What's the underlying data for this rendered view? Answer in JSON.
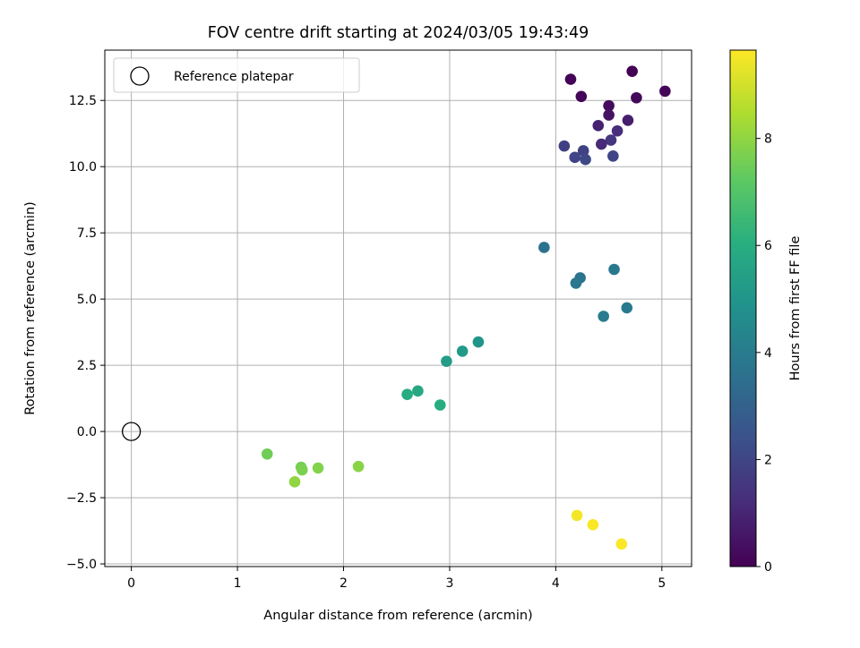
{
  "chart_data": {
    "type": "scatter",
    "title": "FOV centre drift starting at 2024/03/05 19:43:49",
    "xlabel": "Angular distance from reference (arcmin)",
    "ylabel": "Rotation from reference (arcmin)",
    "xlim": [
      -0.25,
      5.28
    ],
    "ylim": [
      -5.1,
      14.4
    ],
    "x_ticks": [
      0,
      1,
      2,
      3,
      4,
      5
    ],
    "x_tick_labels": [
      "0",
      "1",
      "2",
      "3",
      "4",
      "5"
    ],
    "y_ticks": [
      -5.0,
      -2.5,
      0.0,
      2.5,
      5.0,
      7.5,
      10.0,
      12.5
    ],
    "y_tick_labels": [
      "−5.0",
      "−2.5",
      "0.0",
      "2.5",
      "5.0",
      "7.5",
      "10.0",
      "12.5"
    ],
    "grid": true,
    "legend": {
      "placement": "upper-left",
      "entries": [
        {
          "label": "Reference platepar",
          "marker": "open-circle"
        }
      ]
    },
    "reference_point": {
      "x": 0,
      "y": 0
    },
    "colorbar": {
      "label": "Hours from first FF file",
      "colormap": "viridis",
      "range": [
        0,
        9.65
      ],
      "ticks": [
        0,
        2,
        4,
        6,
        8
      ],
      "tick_labels": [
        "0",
        "2",
        "4",
        "6",
        "8"
      ]
    },
    "points": [
      {
        "x": 4.72,
        "y": 13.6,
        "c": 0.0
      },
      {
        "x": 4.14,
        "y": 13.3,
        "c": 0.05
      },
      {
        "x": 5.03,
        "y": 12.85,
        "c": 0.1
      },
      {
        "x": 4.24,
        "y": 12.65,
        "c": 0.15
      },
      {
        "x": 4.76,
        "y": 12.6,
        "c": 0.2
      },
      {
        "x": 4.5,
        "y": 12.3,
        "c": 0.3
      },
      {
        "x": 4.5,
        "y": 11.95,
        "c": 0.5
      },
      {
        "x": 4.68,
        "y": 11.75,
        "c": 0.8
      },
      {
        "x": 4.4,
        "y": 11.55,
        "c": 0.9
      },
      {
        "x": 4.58,
        "y": 11.35,
        "c": 1.2
      },
      {
        "x": 4.52,
        "y": 11.0,
        "c": 1.5
      },
      {
        "x": 4.43,
        "y": 10.85,
        "c": 1.1
      },
      {
        "x": 4.08,
        "y": 10.78,
        "c": 1.8
      },
      {
        "x": 4.26,
        "y": 10.6,
        "c": 1.9
      },
      {
        "x": 4.18,
        "y": 10.35,
        "c": 2.0
      },
      {
        "x": 4.54,
        "y": 10.4,
        "c": 2.0
      },
      {
        "x": 4.28,
        "y": 10.27,
        "c": 2.1
      },
      {
        "x": 3.89,
        "y": 6.95,
        "c": 3.6
      },
      {
        "x": 4.55,
        "y": 6.12,
        "c": 3.9
      },
      {
        "x": 4.23,
        "y": 5.8,
        "c": 3.7
      },
      {
        "x": 4.19,
        "y": 5.6,
        "c": 3.8
      },
      {
        "x": 4.67,
        "y": 4.67,
        "c": 3.9
      },
      {
        "x": 4.45,
        "y": 4.35,
        "c": 4.0
      },
      {
        "x": 3.27,
        "y": 3.38,
        "c": 5.0
      },
      {
        "x": 3.12,
        "y": 3.03,
        "c": 5.2
      },
      {
        "x": 2.97,
        "y": 2.65,
        "c": 5.3
      },
      {
        "x": 2.7,
        "y": 1.53,
        "c": 5.8
      },
      {
        "x": 2.6,
        "y": 1.4,
        "c": 5.9
      },
      {
        "x": 2.91,
        "y": 1.0,
        "c": 6.0
      },
      {
        "x": 1.28,
        "y": -0.85,
        "c": 7.5
      },
      {
        "x": 1.6,
        "y": -1.35,
        "c": 7.6
      },
      {
        "x": 1.61,
        "y": -1.45,
        "c": 7.7
      },
      {
        "x": 1.76,
        "y": -1.38,
        "c": 7.8
      },
      {
        "x": 2.14,
        "y": -1.32,
        "c": 7.9
      },
      {
        "x": 1.54,
        "y": -1.9,
        "c": 8.0
      },
      {
        "x": 4.2,
        "y": -3.17,
        "c": 9.5
      },
      {
        "x": 4.35,
        "y": -3.52,
        "c": 9.6
      },
      {
        "x": 4.62,
        "y": -4.25,
        "c": 9.6
      }
    ]
  }
}
